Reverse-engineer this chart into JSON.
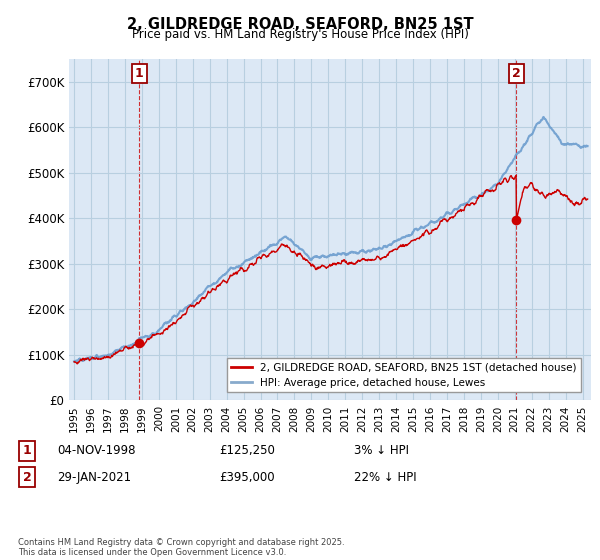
{
  "title": "2, GILDREDGE ROAD, SEAFORD, BN25 1ST",
  "subtitle": "Price paid vs. HM Land Registry's House Price Index (HPI)",
  "ylim": [
    0,
    750000
  ],
  "yticks": [
    0,
    100000,
    200000,
    300000,
    400000,
    500000,
    600000,
    700000
  ],
  "ytick_labels": [
    "£0",
    "£100K",
    "£200K",
    "£300K",
    "£400K",
    "£500K",
    "£600K",
    "£700K"
  ],
  "legend_entries": [
    "2, GILDREDGE ROAD, SEAFORD, BN25 1ST (detached house)",
    "HPI: Average price, detached house, Lewes"
  ],
  "legend_colors": [
    "#cc0000",
    "#88aacc"
  ],
  "footer": "Contains HM Land Registry data © Crown copyright and database right 2025.\nThis data is licensed under the Open Government Licence v3.0.",
  "plot_bg": "#dce8f5",
  "grid_color": "#b8cfe0",
  "hpi_color": "#6699cc",
  "sale_color": "#cc0000",
  "sale1_x": 1998.85,
  "sale1_y": 125250,
  "sale2_x": 2021.08,
  "sale2_y": 395000,
  "xmin": 1994.7,
  "xmax": 2025.5
}
